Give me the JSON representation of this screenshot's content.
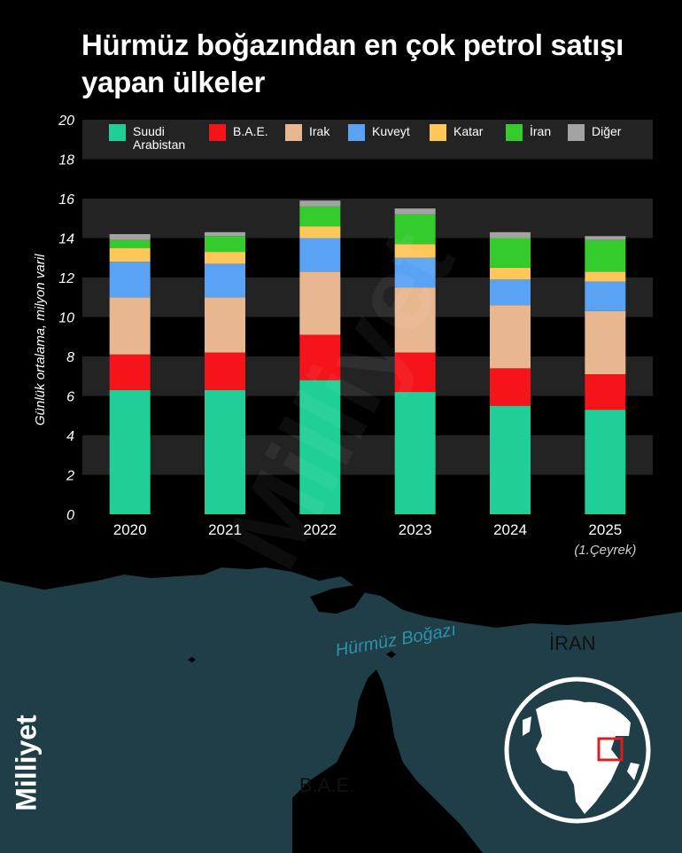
{
  "title": "Hürmüz boğazından en çok petrol satışı yapan ülkeler",
  "brand": "Milliyet",
  "watermark": "Milliyet",
  "map": {
    "labels": {
      "iran": "İRAN",
      "uae": "B.A.E.",
      "strait": "Hürmüz Boğazı"
    },
    "colors": {
      "sea": "#1f3e47",
      "land": "#000000",
      "marker": "#d91f1f"
    }
  },
  "chart_data": {
    "type": "bar",
    "stacked": true,
    "ylabel": "Günlük ortalama, milyon varil",
    "ylim": [
      0,
      20
    ],
    "yticks": [
      0,
      2,
      4,
      6,
      8,
      10,
      12,
      14,
      16,
      18,
      20
    ],
    "categories": [
      "2020",
      "2021",
      "2022",
      "2023",
      "2024",
      "2025"
    ],
    "category_notes": [
      "",
      "",
      "",
      "",
      "",
      "(1.Çeyrek)"
    ],
    "legend_position": "top",
    "series": [
      {
        "name": "Suudi Arabistan",
        "color": "#1fcf97",
        "values": [
          6.3,
          6.3,
          6.8,
          6.2,
          5.5,
          5.3
        ]
      },
      {
        "name": "B.A.E.",
        "color": "#f4141a",
        "values": [
          1.8,
          1.9,
          2.3,
          2.0,
          1.9,
          1.8
        ]
      },
      {
        "name": "Irak",
        "color": "#e8b78f",
        "values": [
          2.9,
          2.8,
          3.2,
          3.3,
          3.2,
          3.2
        ]
      },
      {
        "name": "Kuveyt",
        "color": "#5aa3f4",
        "values": [
          1.8,
          1.7,
          1.7,
          1.5,
          1.3,
          1.5
        ]
      },
      {
        "name": "Katar",
        "color": "#ffc65a",
        "values": [
          0.7,
          0.6,
          0.6,
          0.7,
          0.6,
          0.5
        ]
      },
      {
        "name": "İran",
        "color": "#33cc2c",
        "values": [
          0.4,
          0.8,
          1.0,
          1.5,
          1.5,
          1.6
        ]
      },
      {
        "name": "Diğer",
        "color": "#a3a3a3",
        "values": [
          0.3,
          0.2,
          0.3,
          0.3,
          0.3,
          0.2
        ]
      }
    ]
  }
}
